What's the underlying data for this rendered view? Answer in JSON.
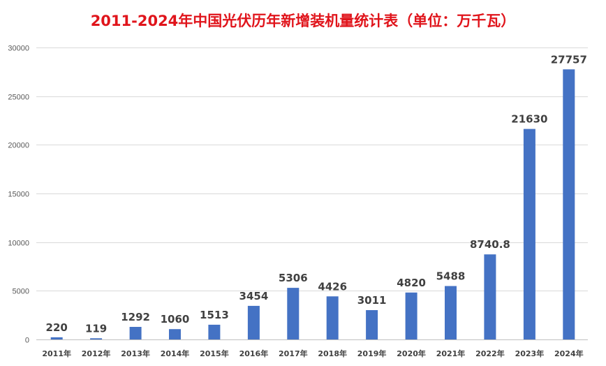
{
  "chart_data": {
    "type": "bar",
    "title": "2011-2024年中国光伏历年新增装机量统计表（单位：万千瓦）",
    "xlabel": "",
    "ylabel": "",
    "categories": [
      "2011年",
      "2012年",
      "2013年",
      "2014年",
      "2015年",
      "2016年",
      "2017年",
      "2018年",
      "2019年",
      "2020年",
      "2021年",
      "2022年",
      "2023年",
      "2024年"
    ],
    "values": [
      220,
      119,
      1292,
      1060,
      1513,
      3454,
      5306,
      4426,
      3011,
      4820,
      5488,
      8740.8,
      21630,
      27757
    ],
    "data_labels": [
      "220",
      "119",
      "1292",
      "1060",
      "1513",
      "3454",
      "5306",
      "4426",
      "3011",
      "4820",
      "5488",
      "8740.8",
      "21630",
      "27757"
    ],
    "ylim": [
      0,
      30000
    ],
    "yticks": [
      0,
      5000,
      10000,
      15000,
      20000,
      25000,
      30000
    ],
    "ytick_labels": [
      "0",
      "5000",
      "10000",
      "15000",
      "20000",
      "25000",
      "30000"
    ],
    "grid": true,
    "legend": "none",
    "bar_color": "#4472c4",
    "title_color": "#e0141b"
  }
}
